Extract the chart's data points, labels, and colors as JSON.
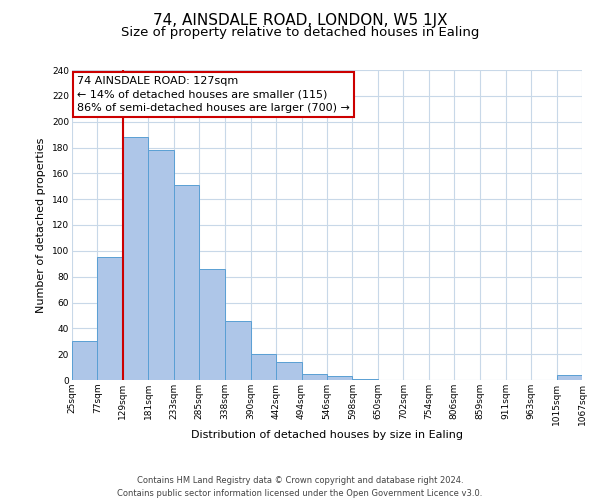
{
  "title": "74, AINSDALE ROAD, LONDON, W5 1JX",
  "subtitle": "Size of property relative to detached houses in Ealing",
  "xlabel": "Distribution of detached houses by size in Ealing",
  "ylabel": "Number of detached properties",
  "bar_values": [
    30,
    95,
    188,
    178,
    151,
    86,
    46,
    20,
    14,
    5,
    3,
    1,
    0,
    0,
    0,
    0,
    0,
    0,
    0,
    4
  ],
  "bin_edges": [
    25,
    77,
    129,
    181,
    233,
    285,
    338,
    390,
    442,
    494,
    546,
    598,
    650,
    702,
    754,
    806,
    859,
    911,
    963,
    1015,
    1067
  ],
  "tick_labels": [
    "25sqm",
    "77sqm",
    "129sqm",
    "181sqm",
    "233sqm",
    "285sqm",
    "338sqm",
    "390sqm",
    "442sqm",
    "494sqm",
    "546sqm",
    "598sqm",
    "650sqm",
    "702sqm",
    "754sqm",
    "806sqm",
    "859sqm",
    "911sqm",
    "963sqm",
    "1015sqm",
    "1067sqm"
  ],
  "bar_color": "#aec6e8",
  "bar_edge_color": "#5a9fd4",
  "vline_x": 129,
  "vline_color": "#cc0000",
  "annotation_line1": "74 AINSDALE ROAD: 127sqm",
  "annotation_line2": "← 14% of detached houses are smaller (115)",
  "annotation_line3": "86% of semi-detached houses are larger (700) →",
  "annotation_box_color": "#ffffff",
  "annotation_box_edge": "#cc0000",
  "ylim": [
    0,
    240
  ],
  "yticks": [
    0,
    20,
    40,
    60,
    80,
    100,
    120,
    140,
    160,
    180,
    200,
    220,
    240
  ],
  "footer_line1": "Contains HM Land Registry data © Crown copyright and database right 2024.",
  "footer_line2": "Contains public sector information licensed under the Open Government Licence v3.0.",
  "bg_color": "#ffffff",
  "grid_color": "#c8d8e8",
  "title_fontsize": 11,
  "subtitle_fontsize": 9.5,
  "axis_label_fontsize": 8,
  "tick_fontsize": 6.5,
  "annotation_fontsize": 8,
  "footer_fontsize": 6
}
